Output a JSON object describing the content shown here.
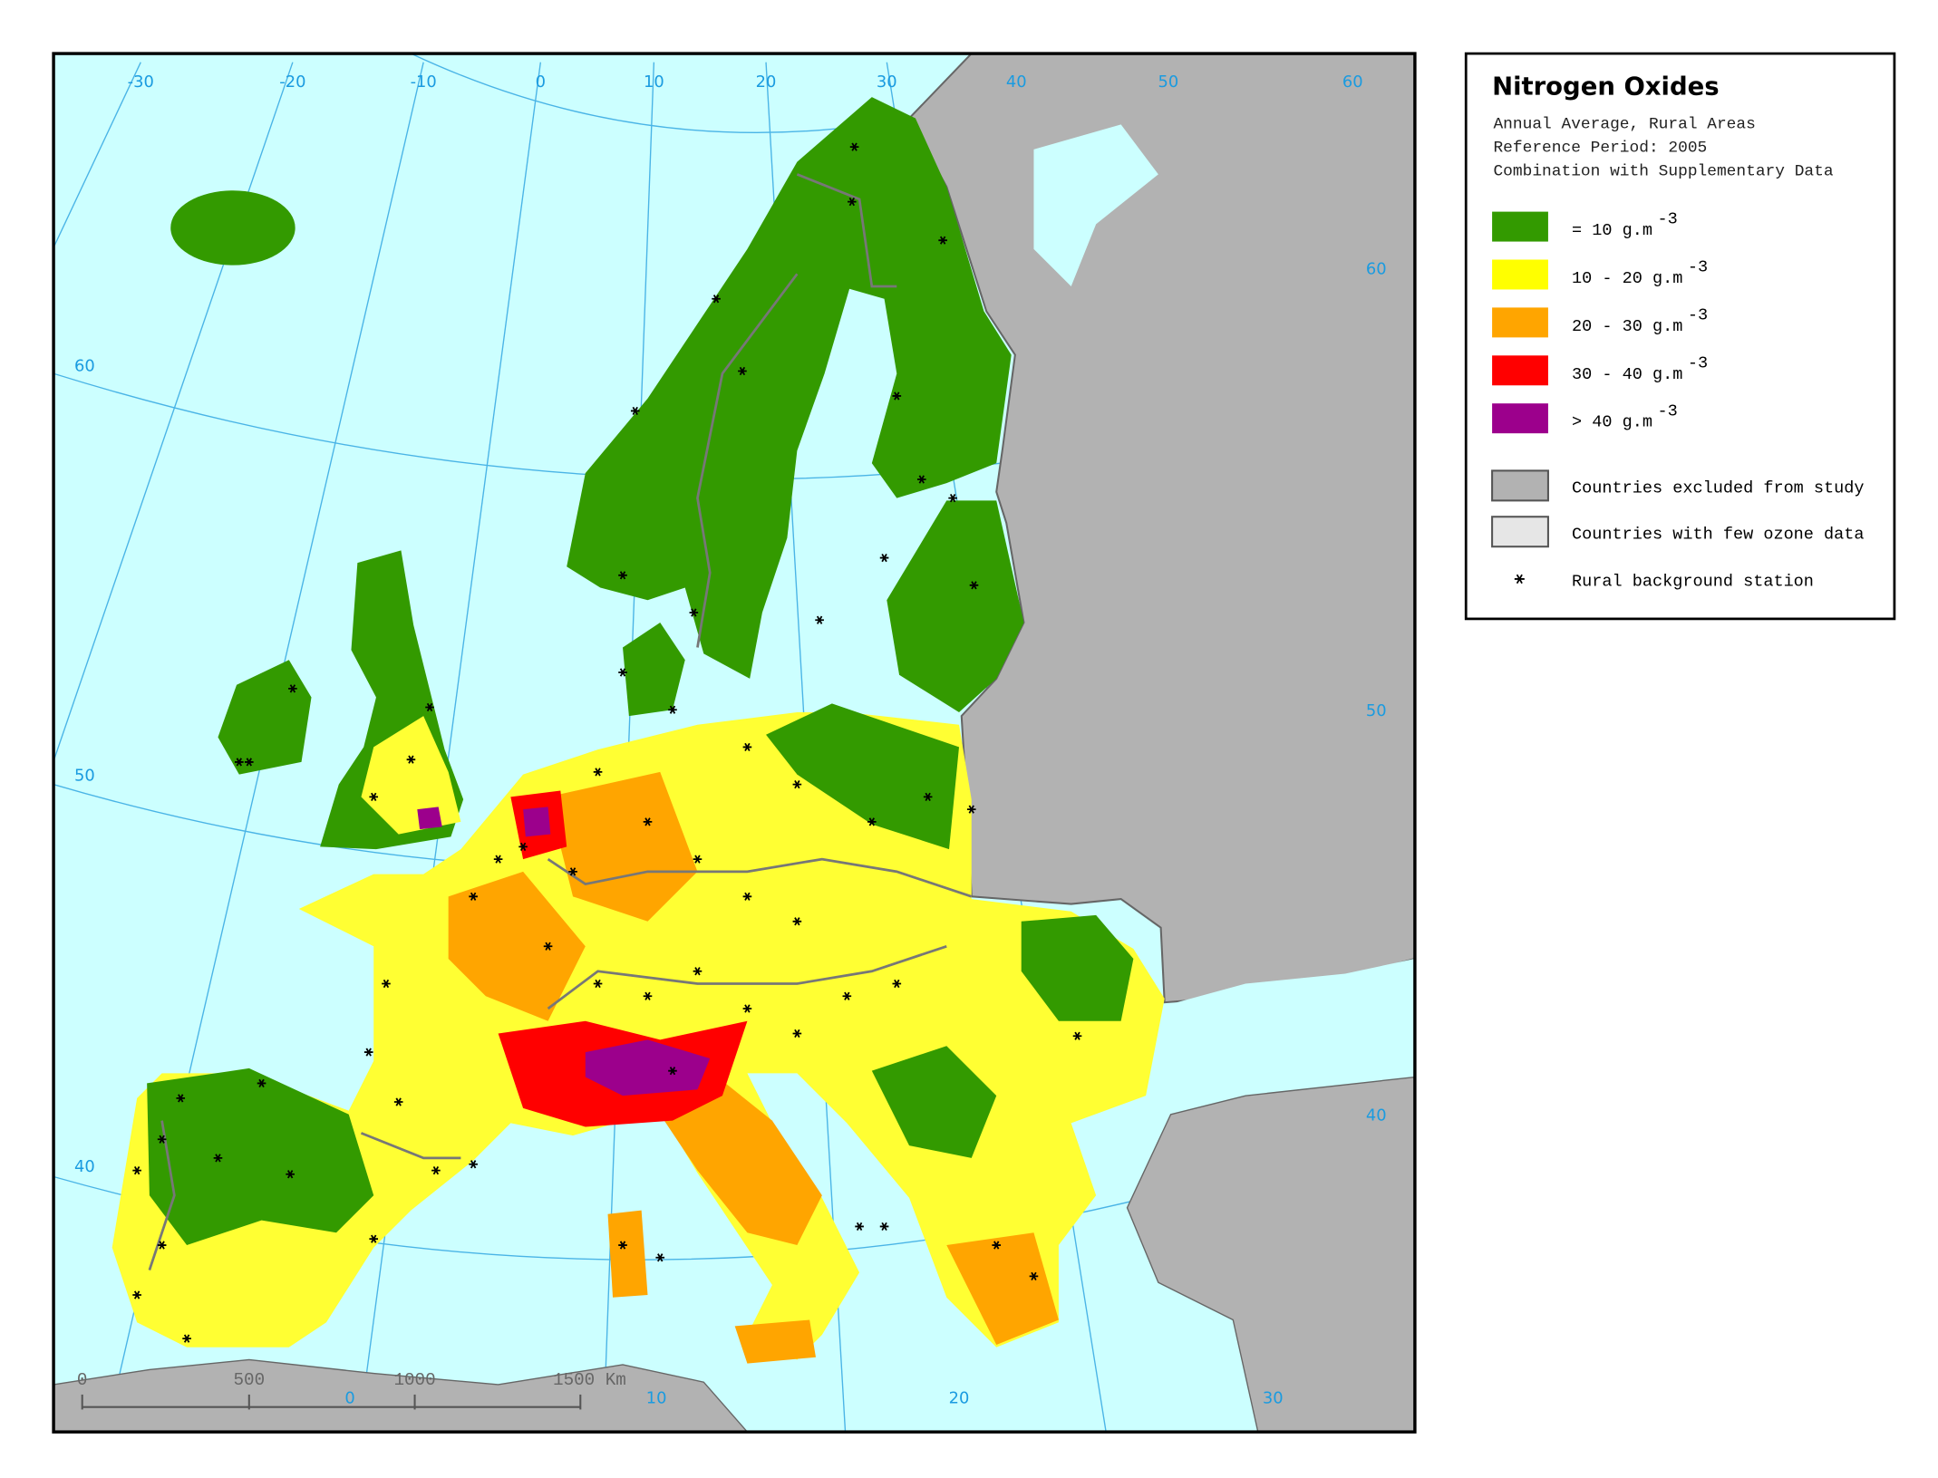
{
  "title": "Nitrogen Oxides",
  "subtitle_lines": [
    "Annual Average, Rural Areas",
    "Reference Period: 2005",
    "Combination with Supplementary Data"
  ],
  "legend": [
    {
      "label": "= 10  g.m",
      "unit_exponent": "-3",
      "color": "#339a00"
    },
    {
      "label": "10 - 20  g.m",
      "unit_exponent": "-3",
      "color": "#ffff00"
    },
    {
      "label": "20 - 30  g.m",
      "unit_exponent": "-3",
      "color": "#ffa500"
    },
    {
      "label": "30 - 40  g.m",
      "unit_exponent": "-3",
      "color": "#ff0000"
    },
    {
      "label": "> 40  g.m",
      "unit_exponent": "-3",
      "color": "#9c008c"
    }
  ],
  "legend_extra": [
    {
      "label": "Countries excluded from study",
      "color": "#b2b2b2"
    },
    {
      "label": "Countries with few ozone data",
      "color": "#e6e6e6"
    }
  ],
  "station_label": "Rural background station",
  "graticule": {
    "top": [
      -30,
      -20,
      -10,
      0,
      10,
      20,
      30,
      40,
      50,
      60
    ],
    "right": [
      60,
      50,
      40
    ],
    "left": [
      60,
      50,
      40
    ],
    "bottom": [
      0,
      10,
      20,
      30
    ]
  },
  "scale_bar": [
    "0",
    "500",
    "1000",
    "1500 Km"
  ]
}
